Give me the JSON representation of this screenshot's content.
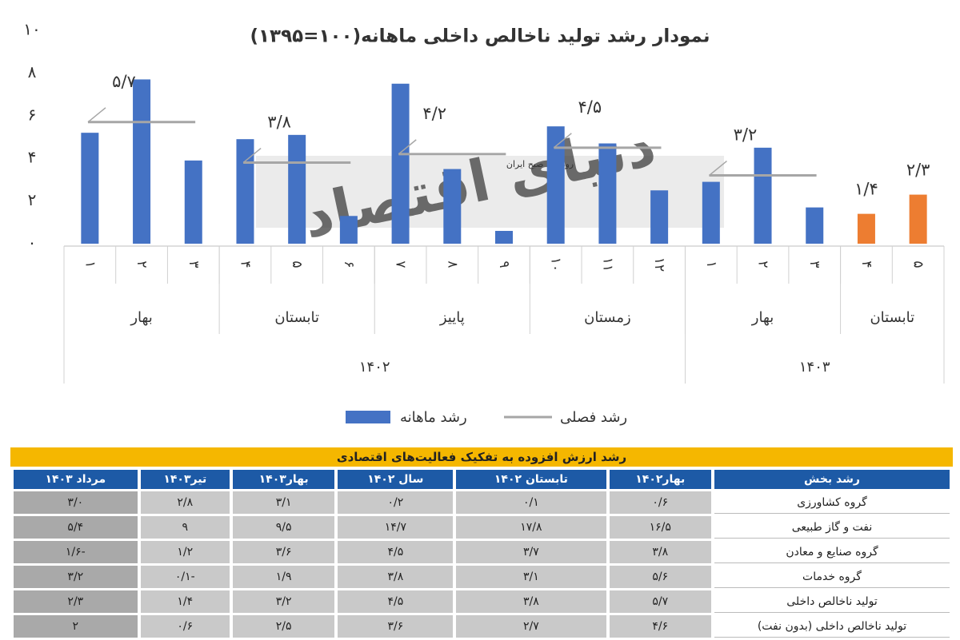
{
  "chart_data": {
    "type": "bar",
    "title": "نمودار رشد تولید ناخالص داخلی ماهانه(۱۰۰=۱۳۹۵)",
    "watermark": "دنیای اقتصاد",
    "watermark_sub": "روزنامه صبح ایران",
    "years": [
      {
        "name": "۱۴۰۲",
        "seasons": [
          {
            "name": "بهار",
            "months": [
              "۱",
              "۲",
              "۳"
            ]
          },
          {
            "name": "تابستان",
            "months": [
              "۴",
              "۵",
              "۶"
            ]
          },
          {
            "name": "پاییز",
            "months": [
              "۷",
              "۸",
              "۹"
            ]
          },
          {
            "name": "زمستان",
            "months": [
              "۱۰",
              "۱۱",
              "۱۲"
            ]
          }
        ]
      },
      {
        "name": "۱۴۰۳",
        "seasons": [
          {
            "name": "بهار",
            "months": [
              "۱",
              "۲",
              "۳"
            ]
          },
          {
            "name": "تابستان",
            "months": [
              "۴",
              "۵"
            ]
          }
        ]
      }
    ],
    "series": [
      {
        "name": "رشد ماهانه",
        "color": "#4472c4",
        "colors": [
          "#4472c4",
          "#4472c4",
          "#4472c4",
          "#4472c4",
          "#4472c4",
          "#4472c4",
          "#4472c4",
          "#4472c4",
          "#4472c4",
          "#4472c4",
          "#4472c4",
          "#4472c4",
          "#4472c4",
          "#4472c4",
          "#4472c4",
          "#ed7d31",
          "#ed7d31"
        ],
        "values": [
          5.2,
          7.7,
          3.9,
          4.9,
          5.1,
          1.3,
          7.5,
          3.5,
          0.6,
          5.5,
          4.7,
          2.5,
          2.9,
          4.5,
          1.7,
          1.4,
          2.3
        ],
        "value_labels": [
          null,
          null,
          null,
          null,
          null,
          null,
          null,
          null,
          null,
          null,
          null,
          null,
          null,
          null,
          null,
          "۱/۴",
          "۲/۳"
        ]
      },
      {
        "name": "رشد فصلی",
        "color": "#a6a6a6",
        "values": [
          5.7,
          3.8,
          4.2,
          4.5,
          3.2,
          null
        ],
        "value_labels": [
          "۵/۷",
          "۳/۸",
          "۴/۲",
          "۴/۵",
          "۳/۲",
          null
        ]
      }
    ],
    "ylim": [
      0,
      10
    ],
    "yticks": [
      {
        "value": 0,
        "label": "۰"
      },
      {
        "value": 2,
        "label": "۲"
      },
      {
        "value": 4,
        "label": "۴"
      },
      {
        "value": 6,
        "label": "۶"
      },
      {
        "value": 8,
        "label": "۸"
      },
      {
        "value": 10,
        "label": "۱۰"
      }
    ]
  },
  "table": {
    "title": "رشد ارزش افزوده به تفکیک فعالیت‌های اقتصادی",
    "header": [
      "رشد بخش",
      "بهار۱۴۰۲",
      "تابستان ۱۴۰۲",
      "سال ۱۴۰۲",
      "بهار۱۴۰۳",
      "تیر۱۴۰۳",
      "مرداد ۱۴۰۳"
    ],
    "rows": [
      [
        "گروه کشاورزی",
        "۰/۶",
        "۰/۱",
        "۰/۲",
        "۳/۱",
        "۲/۸",
        "۳/۰"
      ],
      [
        "نفت و گاز طبیعی",
        "۱۶/۵",
        "۱۷/۸",
        "۱۴/۷",
        "۹/۵",
        "۹",
        "۵/۴"
      ],
      [
        "گروه صنایع و معادن",
        "۳/۸",
        "۳/۷",
        "۴/۵",
        "۳/۶",
        "۱/۲",
        "-۱/۶"
      ],
      [
        "گروه خدمات",
        "۵/۶",
        "۳/۱",
        "۳/۸",
        "۱/۹",
        "-۰/۱",
        "۳/۲"
      ],
      [
        "تولید ناخالص داخلی",
        "۵/۷",
        "۳/۸",
        "۴/۵",
        "۳/۲",
        "۱/۴",
        "۲/۳"
      ],
      [
        "تولید ناخالص داخلی (بدون نفت)",
        "۴/۶",
        "۲/۷",
        "۳/۶",
        "۲/۵",
        "۰/۶",
        "۲"
      ]
    ]
  }
}
